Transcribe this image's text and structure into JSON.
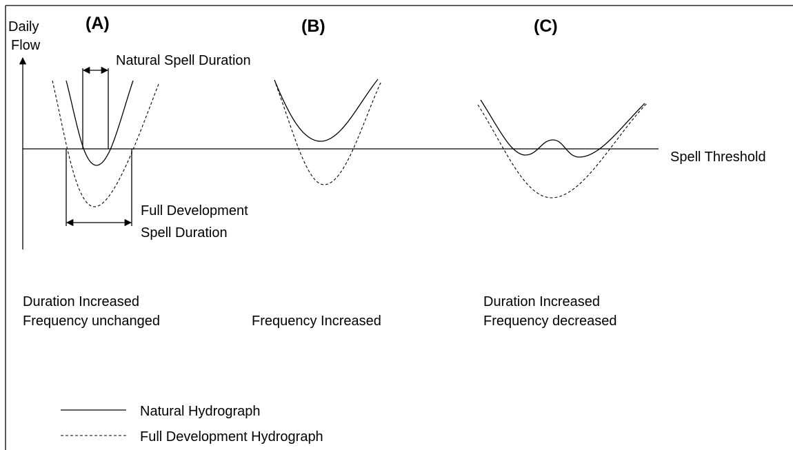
{
  "axis_label": [
    "Daily",
    "Flow"
  ],
  "panels": [
    {
      "label": "(A)",
      "caption": [
        "Duration Increased",
        "Frequency unchanged"
      ]
    },
    {
      "label": "(B)",
      "caption": [
        "Frequency Increased"
      ]
    },
    {
      "label": "(C)",
      "caption": [
        "Duration Increased",
        "Frequency decreased"
      ]
    }
  ],
  "annotations": {
    "natural_spell": "Natural Spell Duration",
    "full_spell": [
      "Full Development",
      "Spell Duration"
    ],
    "threshold": "Spell Threshold"
  },
  "legend": [
    "Natural Hydrograph",
    "Full Development Hydrograph"
  ]
}
